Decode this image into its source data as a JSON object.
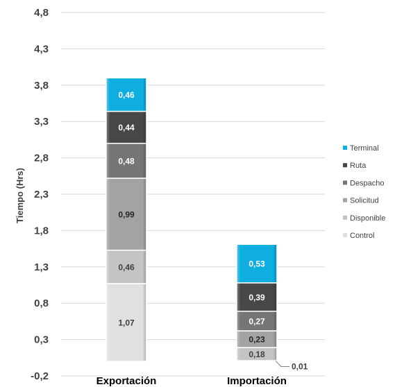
{
  "chart_data": {
    "type": "bar",
    "stacked": true,
    "categories": [
      "Exportación",
      "Importación"
    ],
    "ylabel": "Tiempo (Hrs)",
    "ylim": [
      -0.2,
      4.8
    ],
    "yticks": [
      "-0,2",
      "0,3",
      "0,8",
      "1,3",
      "1,8",
      "2,3",
      "2,8",
      "3,3",
      "3,8",
      "4,3",
      "4,8"
    ],
    "grid": true,
    "legend_position": "right",
    "series": [
      {
        "name": "Control",
        "values": [
          1.07,
          0.01
        ],
        "labels": [
          "1,07",
          "0,01"
        ],
        "color": "#e0e0e0",
        "text_color": "#404040"
      },
      {
        "name": "Disponible",
        "values": [
          0.46,
          0.18
        ],
        "labels": [
          "0,46",
          "0,18"
        ],
        "color": "#c4c4c4",
        "text_color": "#404040"
      },
      {
        "name": "Solicitud",
        "values": [
          0.99,
          0.23
        ],
        "labels": [
          "0,99",
          "0,23"
        ],
        "color": "#a3a3a3",
        "text_color": "#262626"
      },
      {
        "name": "Despacho",
        "values": [
          0.48,
          0.27
        ],
        "labels": [
          "0,48",
          "0,27"
        ],
        "color": "#757575",
        "text_color": "#ffffff"
      },
      {
        "name": "Ruta",
        "values": [
          0.44,
          0.39
        ],
        "labels": [
          "0,44",
          "0,39"
        ],
        "color": "#474747",
        "text_color": "#ffffff"
      },
      {
        "name": "Terminal",
        "values": [
          0.46,
          0.53
        ],
        "labels": [
          "0,46",
          "0,53"
        ],
        "color": "#0eaee0",
        "text_color": "#ffffff"
      }
    ],
    "legend_order": [
      "Terminal",
      "Ruta",
      "Despacho",
      "Solicitud",
      "Disponible",
      "Control"
    ]
  }
}
